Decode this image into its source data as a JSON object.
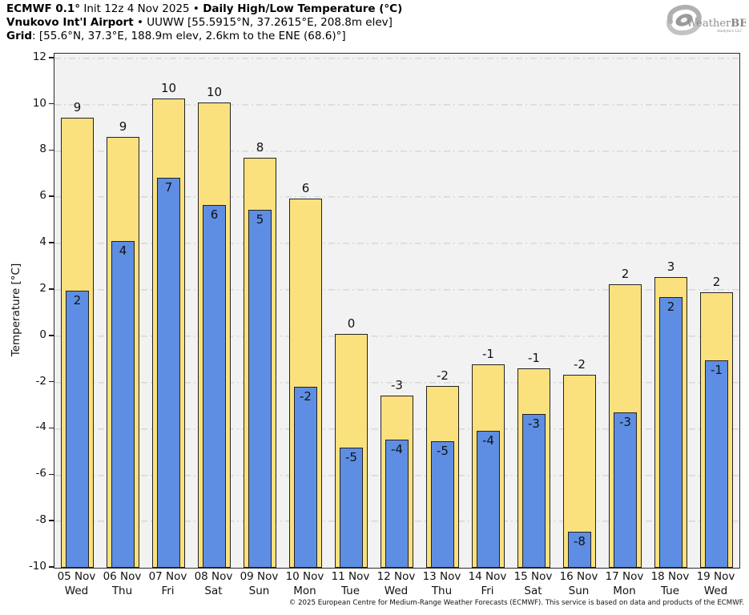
{
  "header": {
    "line1_bold1": "ECMWF 0.1°",
    "line1_normal": " Init 12z 4 Nov 2025 • ",
    "line1_bold2": "Daily High/Low Temperature (°C)",
    "line2_bold": "Vnukovo Int'l Airport",
    "line2_normal": " • UUWW [55.5915°N, 37.2615°E, 208.8m elev]",
    "line3_bold": "Grid",
    "line3_normal": ": [55.6°N, 37.3°E, 188.9m elev, 2.6km to the ENE (68.6)°]"
  },
  "logo": {
    "brand_weather": "Weather",
    "brand_bell": "BELL",
    "subtitle": "Analytics LLC"
  },
  "footer": {
    "credit": "© 2025 European Centre for Medium-Range Weather Forecasts (ECMWF). This service is based on data and products of the ECMWF."
  },
  "colors": {
    "high_bar": "#FBE17E",
    "low_bar": "#5E8EE3",
    "bar_border": "#222222",
    "plot_bg": "#f2f2f2",
    "gridline": "#d9d9d9",
    "logo_gray": "#9a9a9a"
  },
  "chart_data": {
    "type": "bar",
    "title": "ECMWF 0.1° Init 12z 4 Nov 2025 • Daily High/Low Temperature (°C)",
    "subtitle": "Vnukovo Int'l Airport • UUWW [55.5915°N, 37.2615°E, 208.8m elev]",
    "xlabel": "",
    "ylabel": "Temperature [°C]",
    "ylim": [
      -10,
      12.2
    ],
    "yticks": [
      12,
      10,
      8,
      6,
      4,
      2,
      0,
      -2,
      -4,
      -6,
      -8,
      -10
    ],
    "baseline": -10,
    "grid": "horizontal-dash-dot",
    "legend_position": "none",
    "categories": [
      "05 Nov",
      "06 Nov",
      "07 Nov",
      "08 Nov",
      "09 Nov",
      "10 Nov",
      "11 Nov",
      "12 Nov",
      "13 Nov",
      "14 Nov",
      "15 Nov",
      "16 Nov",
      "17 Nov",
      "18 Nov",
      "19 Nov"
    ],
    "weekdays": [
      "Wed",
      "Thu",
      "Fri",
      "Sat",
      "Sun",
      "Mon",
      "Tue",
      "Wed",
      "Thu",
      "Fri",
      "Sat",
      "Sun",
      "Mon",
      "Tue",
      "Wed"
    ],
    "series": [
      {
        "name": "Daily High",
        "color": "#FBE17E",
        "values": [
          9.45,
          8.6,
          10.25,
          10.1,
          7.7,
          5.95,
          0.1,
          -2.55,
          -2.15,
          -1.2,
          -1.4,
          -1.65,
          2.25,
          2.55,
          1.9
        ],
        "labels": [
          "9",
          "9",
          "10",
          "10",
          "8",
          "6",
          "0",
          "-3",
          "-2",
          "-1",
          "-1",
          "-2",
          "2",
          "3",
          "2"
        ]
      },
      {
        "name": "Daily Low",
        "color": "#5E8EE3",
        "values": [
          1.95,
          4.1,
          6.85,
          5.65,
          5.45,
          -2.2,
          -4.8,
          -4.45,
          -4.55,
          -4.1,
          -3.35,
          -8.45,
          -3.3,
          1.7,
          -1.05
        ],
        "labels": [
          "2",
          "4",
          "7",
          "6",
          "5",
          "-2",
          "-5",
          "-4",
          "-5",
          "-4",
          "-3",
          "-8",
          "-3",
          "2",
          "-1"
        ]
      }
    ]
  }
}
